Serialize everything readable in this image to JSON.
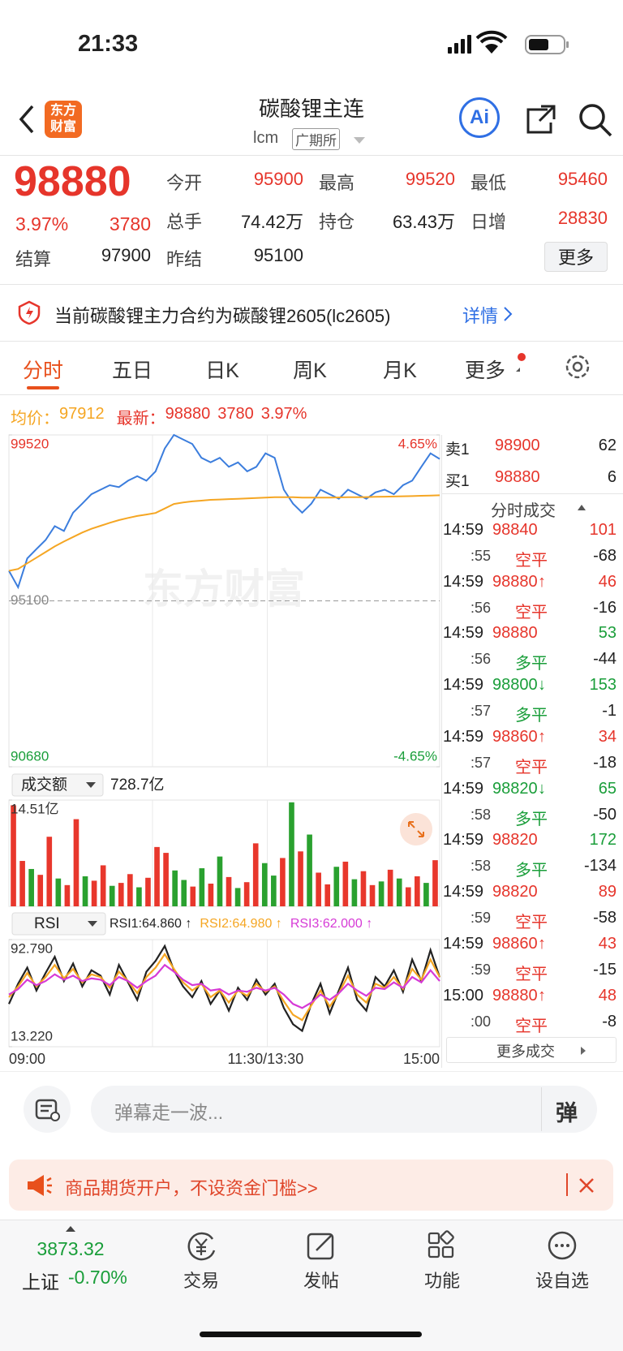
{
  "status_bar": {
    "time": "21:33"
  },
  "header": {
    "logo": [
      "东方",
      "财富"
    ],
    "title": "碳酸锂主连",
    "code": "lcm",
    "exchange": "广期所",
    "ai": "Ai"
  },
  "quote": {
    "price": "98880",
    "change_pct": "3.97%",
    "change": "3780",
    "more": "更多",
    "fields": [
      {
        "label": "今开",
        "value": "95900",
        "color": "#e6352b"
      },
      {
        "label": "最高",
        "value": "99520",
        "color": "#e6352b"
      },
      {
        "label": "最低",
        "value": "95460",
        "color": "#e6352b"
      },
      {
        "label": "总手",
        "value": "74.42万",
        "color": "#222222"
      },
      {
        "label": "持仓",
        "value": "63.43万",
        "color": "#222222"
      },
      {
        "label": "日增",
        "value": "28830",
        "color": "#e6352b"
      },
      {
        "label": "结算",
        "value": "97900",
        "color": "#222222"
      },
      {
        "label": "昨结",
        "value": "95100",
        "color": "#222222"
      }
    ]
  },
  "notice": {
    "text": "当前碳酸锂主力合约为碳酸锂2605(lc2605)",
    "link": "详情"
  },
  "tabs": [
    "分时",
    "五日",
    "日K",
    "周K",
    "月K",
    "更多"
  ],
  "summary": {
    "avg_label": "均价：",
    "avg": "97912",
    "latest_label": "最新：",
    "latest": "98880",
    "change": "3780",
    "change_pct": "3.97%"
  },
  "watermark": "东方财富",
  "chart_data": [
    {
      "type": "line",
      "ylim": [
        90680,
        99520
      ],
      "yticks": [
        99520,
        95100,
        90680
      ],
      "y2lim": [
        -4.65,
        4.65
      ],
      "y2ticks": [
        {
          "value": 4.65,
          "label": "4.65%"
        },
        {
          "value": -4.65,
          "label": "-4.65%"
        }
      ],
      "grid": true,
      "series": [
        {
          "color": "#3b7ddd",
          "values": [
            95900,
            95460,
            96230,
            96480,
            96720,
            97090,
            96960,
            97450,
            97690,
            97940,
            98060,
            98180,
            98130,
            98300,
            98420,
            98300,
            98550,
            99160,
            99520,
            99400,
            99280,
            98910,
            98790,
            98910,
            98670,
            98790,
            98550,
            98670,
            99030,
            98910,
            98060,
            97690,
            97450,
            97690,
            98060,
            97940,
            97820,
            98060,
            97940,
            97820,
            97990,
            98060,
            97940,
            98180,
            98300,
            98670,
            99030,
            98880
          ]
        },
        {
          "color": "#f5a623",
          "values": [
            95900,
            95950,
            96100,
            96250,
            96400,
            96550,
            96680,
            96800,
            96920,
            97020,
            97100,
            97180,
            97250,
            97310,
            97360,
            97400,
            97440,
            97560,
            97680,
            97720,
            97750,
            97770,
            97790,
            97800,
            97810,
            97820,
            97830,
            97840,
            97850,
            97860,
            97860,
            97860,
            97850,
            97850,
            97850,
            97850,
            97855,
            97860,
            97860,
            97865,
            97870,
            97875,
            97880,
            97885,
            97890,
            97900,
            97905,
            97912
          ]
        }
      ]
    },
    {
      "type": "bar",
      "indicator": "成交额",
      "total": "728.7亿",
      "ylim": [
        0,
        14.51
      ],
      "yticks": [
        {
          "value": 14.51,
          "label": "14.51亿"
        }
      ],
      "values": [
        13.8,
        6.2,
        5.1,
        4.3,
        9.5,
        3.8,
        2.9,
        11.9,
        4.1,
        3.5,
        5.6,
        2.8,
        3.2,
        4.4,
        2.6,
        3.9,
        8.1,
        7.3,
        4.9,
        3.6,
        2.7,
        5.2,
        3.1,
        6.8,
        4.0,
        2.5,
        3.3,
        8.6,
        5.9,
        4.2,
        6.6,
        14.2,
        7.5,
        9.8,
        4.6,
        3.0,
        5.4,
        6.1,
        3.7,
        4.8,
        2.9,
        3.4,
        5.0,
        3.8,
        2.6,
        4.1,
        3.2,
        6.3
      ],
      "colors": [
        "#e8372c",
        "#e8372c",
        "#2aa12f",
        "#e8372c",
        "#e8372c",
        "#2aa12f",
        "#e8372c",
        "#e8372c",
        "#2aa12f",
        "#e8372c",
        "#e8372c",
        "#2aa12f",
        "#e8372c",
        "#e8372c",
        "#2aa12f",
        "#e8372c",
        "#e8372c",
        "#e8372c",
        "#2aa12f",
        "#2aa12f",
        "#e8372c",
        "#2aa12f",
        "#e8372c",
        "#2aa12f",
        "#e8372c",
        "#2aa12f",
        "#e8372c",
        "#e8372c",
        "#2aa12f",
        "#2aa12f",
        "#e8372c",
        "#2aa12f",
        "#e8372c",
        "#2aa12f",
        "#e8372c",
        "#e8372c",
        "#2aa12f",
        "#e8372c",
        "#2aa12f",
        "#e8372c",
        "#e8372c",
        "#2aa12f",
        "#e8372c",
        "#2aa12f",
        "#e8372c",
        "#e8372c",
        "#2aa12f",
        "#e8372c"
      ]
    },
    {
      "type": "line",
      "indicator": "RSI",
      "categories": [
        "09:00",
        null,
        null,
        null,
        null,
        null,
        null,
        null,
        null,
        null,
        null,
        null,
        null,
        null,
        null,
        null,
        null,
        null,
        null,
        null,
        null,
        null,
        null,
        null,
        null,
        null,
        null,
        null,
        "11:30/13:30",
        null,
        null,
        null,
        null,
        null,
        null,
        null,
        null,
        null,
        null,
        null,
        null,
        null,
        null,
        null,
        null,
        null,
        null,
        "15:00"
      ],
      "ylim": [
        13.22,
        92.79
      ],
      "yticks": [
        {
          "value": 92.79,
          "label": "92.790"
        },
        {
          "value": 13.22,
          "label": "13.220"
        }
      ],
      "series": [
        {
          "name": "RSI1:64.860 ↑",
          "color": "#222222",
          "values": [
            45,
            60,
            72,
            55,
            68,
            80,
            62,
            75,
            58,
            70,
            66,
            52,
            74,
            61,
            48,
            69,
            77,
            88,
            70,
            58,
            50,
            62,
            45,
            55,
            40,
            57,
            48,
            63,
            52,
            60,
            42,
            30,
            25,
            45,
            60,
            38,
            55,
            72,
            48,
            40,
            65,
            58,
            70,
            54,
            78,
            62,
            85,
            64.86
          ]
        },
        {
          "name": "RSI2:64.980 ↑",
          "color": "#f5a623",
          "values": [
            50,
            58,
            68,
            58,
            65,
            74,
            64,
            71,
            61,
            67,
            65,
            57,
            69,
            62,
            53,
            65,
            72,
            82,
            71,
            61,
            55,
            60,
            50,
            55,
            46,
            55,
            51,
            60,
            54,
            58,
            47,
            37,
            33,
            44,
            55,
            43,
            53,
            66,
            52,
            46,
            60,
            57,
            65,
            56,
            71,
            63,
            78,
            64.98
          ]
        },
        {
          "name": "RSI3:62.000 ↑",
          "color": "#d63ad6",
          "values": [
            52,
            56,
            63,
            59,
            62,
            67,
            63,
            66,
            62,
            64,
            63,
            59,
            65,
            62,
            57,
            62,
            66,
            74,
            69,
            63,
            59,
            60,
            55,
            56,
            52,
            55,
            54,
            57,
            55,
            57,
            52,
            45,
            42,
            46,
            52,
            48,
            53,
            60,
            55,
            51,
            57,
            56,
            61,
            57,
            65,
            61,
            70,
            62
          ]
        }
      ]
    }
  ],
  "order_book": {
    "ask": {
      "label": "卖1",
      "price": "98900",
      "volume": "62"
    },
    "bid": {
      "label": "买1",
      "price": "98880",
      "volume": "6"
    }
  },
  "trades": {
    "title": "分时成交",
    "more": "更多成交",
    "rows": [
      {
        "time": "14:59",
        "price": "98840",
        "price_color": "#e6352b",
        "volume": "101",
        "volume_color": "#e6352b",
        "sub_time": ":55",
        "kind": "空平",
        "kind_color": "#e6352b",
        "change": "-68"
      },
      {
        "time": "14:59",
        "price": "98880",
        "arrow": "↑",
        "price_color": "#e6352b",
        "volume": "46",
        "volume_color": "#e6352b",
        "sub_time": ":56",
        "kind": "空平",
        "kind_color": "#e6352b",
        "change": "-16"
      },
      {
        "time": "14:59",
        "price": "98880",
        "price_color": "#e6352b",
        "volume": "53",
        "volume_color": "#1a9e3a",
        "sub_time": ":56",
        "kind": "多平",
        "kind_color": "#1a9e3a",
        "change": "-44"
      },
      {
        "time": "14:59",
        "price": "98800",
        "arrow": "↓",
        "price_color": "#1a9e3a",
        "volume": "153",
        "volume_color": "#1a9e3a",
        "sub_time": ":57",
        "kind": "多平",
        "kind_color": "#1a9e3a",
        "change": "-1"
      },
      {
        "time": "14:59",
        "price": "98860",
        "arrow": "↑",
        "price_color": "#e6352b",
        "volume": "34",
        "volume_color": "#e6352b",
        "sub_time": ":57",
        "kind": "空平",
        "kind_color": "#e6352b",
        "change": "-18"
      },
      {
        "time": "14:59",
        "price": "98820",
        "arrow": "↓",
        "price_color": "#1a9e3a",
        "volume": "65",
        "volume_color": "#1a9e3a",
        "sub_time": ":58",
        "kind": "多平",
        "kind_color": "#1a9e3a",
        "change": "-50"
      },
      {
        "time": "14:59",
        "price": "98820",
        "price_color": "#e6352b",
        "volume": "172",
        "volume_color": "#1a9e3a",
        "sub_time": ":58",
        "kind": "多平",
        "kind_color": "#1a9e3a",
        "change": "-134"
      },
      {
        "time": "14:59",
        "price": "98820",
        "price_color": "#e6352b",
        "volume": "89",
        "volume_color": "#e6352b",
        "sub_time": ":59",
        "kind": "空平",
        "kind_color": "#e6352b",
        "change": "-58"
      },
      {
        "time": "14:59",
        "price": "98860",
        "arrow": "↑",
        "price_color": "#e6352b",
        "volume": "43",
        "volume_color": "#e6352b",
        "sub_time": ":59",
        "kind": "空平",
        "kind_color": "#e6352b",
        "change": "-15"
      },
      {
        "time": "15:00",
        "price": "98880",
        "arrow": "↑",
        "price_color": "#e6352b",
        "volume": "48",
        "volume_color": "#e6352b",
        "sub_time": ":00",
        "kind": "空平",
        "kind_color": "#e6352b",
        "change": "-8"
      }
    ]
  },
  "comment_bar": {
    "placeholder": "弹幕走一波...",
    "button": "弹"
  },
  "ad": {
    "text": "商品期货开户，不设资金门槛>>"
  },
  "nav": {
    "index_value": "3873.32",
    "index_name": "上证",
    "index_change": "-0.70%",
    "items": [
      "交易",
      "发帖",
      "功能",
      "设自选"
    ]
  }
}
